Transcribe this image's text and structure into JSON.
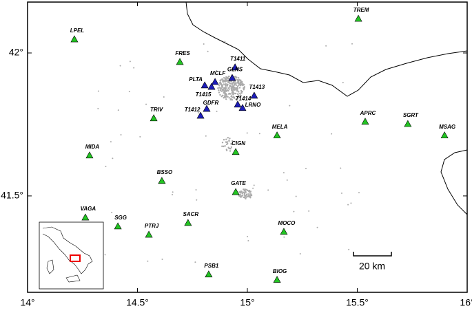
{
  "map": {
    "xlim": [
      14,
      16
    ],
    "ylim": [
      41.163,
      42.178
    ],
    "xticks": [
      {
        "value": 14,
        "label": "14°"
      },
      {
        "value": 14.5,
        "label": "14.5°"
      },
      {
        "value": 15,
        "label": "15°"
      },
      {
        "value": 15.5,
        "label": "15.5°"
      },
      {
        "value": 16,
        "label": "16°"
      }
    ],
    "yticks": [
      {
        "value": 41.5,
        "label": "41.5°"
      },
      {
        "value": 42,
        "label": "42°"
      }
    ],
    "scale_bar": {
      "label": "20 km"
    },
    "stations": [
      {
        "label": "LPEL",
        "lon": 14.213,
        "lat": 42.048,
        "color": "#22c422"
      },
      {
        "label": "FRES",
        "lon": 14.693,
        "lat": 41.969,
        "color": "#22c422"
      },
      {
        "label": "TREM",
        "lon": 15.505,
        "lat": 42.12,
        "color": "#22c422"
      },
      {
        "label": "T1411",
        "lon": 14.944,
        "lat": 41.95,
        "color": "#1c1cb8"
      },
      {
        "label": "GLNS",
        "lon": 14.931,
        "lat": 41.913,
        "color": "#1c1cb8"
      },
      {
        "label": "MCLF",
        "lon": 14.853,
        "lat": 41.899,
        "color": "#1c1cb8"
      },
      {
        "label": "PLTA",
        "lon": 14.806,
        "lat": 41.887,
        "color": "#1c1cb8"
      },
      {
        "label": "T1415",
        "lon": 14.837,
        "lat": 41.882,
        "color": "#1c1cb8"
      },
      {
        "label": "T1413",
        "lon": 15.031,
        "lat": 41.851,
        "color": "#1c1cb8"
      },
      {
        "label": "T1414",
        "lon": 14.956,
        "lat": 41.82,
        "color": "#1c1cb8"
      },
      {
        "label": "LRNO",
        "lon": 14.978,
        "lat": 41.808,
        "color": "#1c1cb8"
      },
      {
        "label": "GDFR",
        "lon": 14.815,
        "lat": 41.805,
        "color": "#1c1cb8"
      },
      {
        "label": "T1412",
        "lon": 14.787,
        "lat": 41.781,
        "color": "#1c1cb8"
      },
      {
        "label": "TRIV",
        "lon": 14.574,
        "lat": 41.772,
        "color": "#22c422"
      },
      {
        "label": "APRC",
        "lon": 15.536,
        "lat": 41.76,
        "color": "#22c422"
      },
      {
        "label": "SGRT",
        "lon": 15.73,
        "lat": 41.752,
        "color": "#22c422"
      },
      {
        "label": "MSAG",
        "lon": 15.897,
        "lat": 41.712,
        "color": "#22c422"
      },
      {
        "label": "MELA",
        "lon": 15.135,
        "lat": 41.712,
        "color": "#22c422"
      },
      {
        "label": "MIDA",
        "lon": 14.282,
        "lat": 41.642,
        "color": "#22c422"
      },
      {
        "label": "CIGN",
        "lon": 14.947,
        "lat": 41.654,
        "color": "#22c422"
      },
      {
        "label": "BSSO",
        "lon": 14.611,
        "lat": 41.553,
        "color": "#22c422"
      },
      {
        "label": "GATE",
        "lon": 14.947,
        "lat": 41.514,
        "color": "#22c422"
      },
      {
        "label": "VAGA",
        "lon": 14.263,
        "lat": 41.425,
        "color": "#22c422"
      },
      {
        "label": "SGG",
        "lon": 14.411,
        "lat": 41.394,
        "color": "#22c422"
      },
      {
        "label": "SACR",
        "lon": 14.73,
        "lat": 41.406,
        "color": "#22c422"
      },
      {
        "label": "PTRJ",
        "lon": 14.552,
        "lat": 41.365,
        "color": "#22c422"
      },
      {
        "label": "MOCO",
        "lon": 15.166,
        "lat": 41.375,
        "color": "#22c422"
      },
      {
        "label": "PSB1",
        "lon": 14.824,
        "lat": 41.226,
        "color": "#22c422"
      },
      {
        "label": "BIOG",
        "lon": 15.135,
        "lat": 41.207,
        "color": "#22c422"
      }
    ]
  }
}
